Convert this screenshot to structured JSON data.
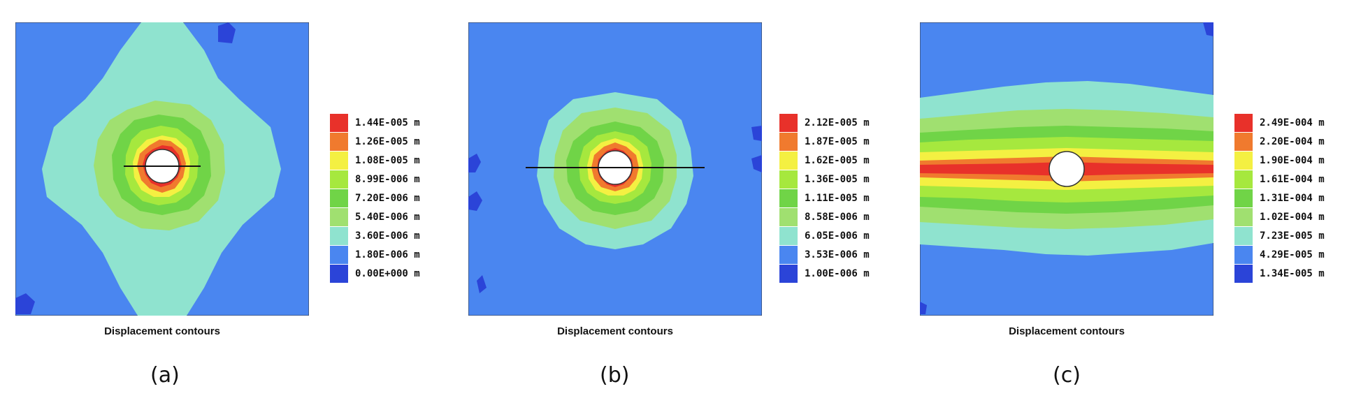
{
  "panels": [
    {
      "id": "a",
      "sublabel": "(a)",
      "caption": "Displacement contours",
      "legend": [
        {
          "label": "1.44E-005 m",
          "color": "#e8312a"
        },
        {
          "label": "1.26E-005 m",
          "color": "#f07a2e"
        },
        {
          "label": "1.08E-005 m",
          "color": "#f4f042"
        },
        {
          "label": "8.99E-006 m",
          "color": "#a6e83e"
        },
        {
          "label": "7.20E-006 m",
          "color": "#70d447"
        },
        {
          "label": "5.40E-006 m",
          "color": "#a0e070"
        },
        {
          "label": "3.60E-006 m",
          "color": "#8fe3cf"
        },
        {
          "label": "1.80E-006 m",
          "color": "#4a86f0"
        },
        {
          "label": "0.00E+000 m",
          "color": "#2b44d8"
        }
      ]
    },
    {
      "id": "b",
      "sublabel": "(b)",
      "caption": "Displacement contours",
      "legend": [
        {
          "label": "2.12E-005 m",
          "color": "#e8312a"
        },
        {
          "label": "1.87E-005 m",
          "color": "#f07a2e"
        },
        {
          "label": "1.62E-005 m",
          "color": "#f4f042"
        },
        {
          "label": "1.36E-005 m",
          "color": "#a6e83e"
        },
        {
          "label": "1.11E-005 m",
          "color": "#70d447"
        },
        {
          "label": "8.58E-006 m",
          "color": "#a0e070"
        },
        {
          "label": "6.05E-006 m",
          "color": "#8fe3cf"
        },
        {
          "label": "3.53E-006 m",
          "color": "#4a86f0"
        },
        {
          "label": "1.00E-006 m",
          "color": "#2b44d8"
        }
      ]
    },
    {
      "id": "c",
      "sublabel": "(c)",
      "caption": "Displacement contours",
      "legend": [
        {
          "label": "2.49E-004 m",
          "color": "#e8312a"
        },
        {
          "label": "2.20E-004 m",
          "color": "#f07a2e"
        },
        {
          "label": "1.90E-004 m",
          "color": "#f4f042"
        },
        {
          "label": "1.61E-004 m",
          "color": "#a6e83e"
        },
        {
          "label": "1.31E-004 m",
          "color": "#70d447"
        },
        {
          "label": "1.02E-004 m",
          "color": "#a0e070"
        },
        {
          "label": "7.23E-005 m",
          "color": "#8fe3cf"
        },
        {
          "label": "4.29E-005 m",
          "color": "#4a86f0"
        },
        {
          "label": "1.34E-005 m",
          "color": "#2b44d8"
        }
      ]
    }
  ]
}
